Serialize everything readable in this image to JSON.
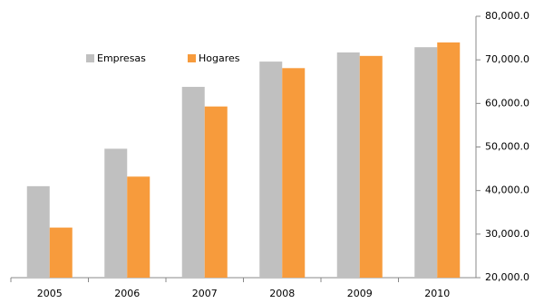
{
  "chart_data": {
    "type": "bar",
    "categories": [
      "2005",
      "2006",
      "2007",
      "2008",
      "2009",
      "2010"
    ],
    "series": [
      {
        "name": "Empresas",
        "color": "#c0c0c0",
        "values": [
          41000,
          49600,
          63800,
          69600,
          71700,
          72900
        ]
      },
      {
        "name": "Hogares",
        "color": "#f79b3c",
        "values": [
          31500,
          43200,
          59300,
          68100,
          70900,
          74000
        ]
      }
    ],
    "ylim": [
      20000,
      80000
    ],
    "yticks": [
      {
        "value": 20000,
        "label": "20,000.0"
      },
      {
        "value": 30000,
        "label": "30,000.0"
      },
      {
        "value": 40000,
        "label": "40,000.0"
      },
      {
        "value": 50000,
        "label": "50,000.0"
      },
      {
        "value": 60000,
        "label": "60,000.0"
      },
      {
        "value": 70000,
        "label": "70,000.0"
      },
      {
        "value": 80000,
        "label": "80,000.0"
      }
    ],
    "y_axis_side": "right",
    "legend": "top"
  }
}
